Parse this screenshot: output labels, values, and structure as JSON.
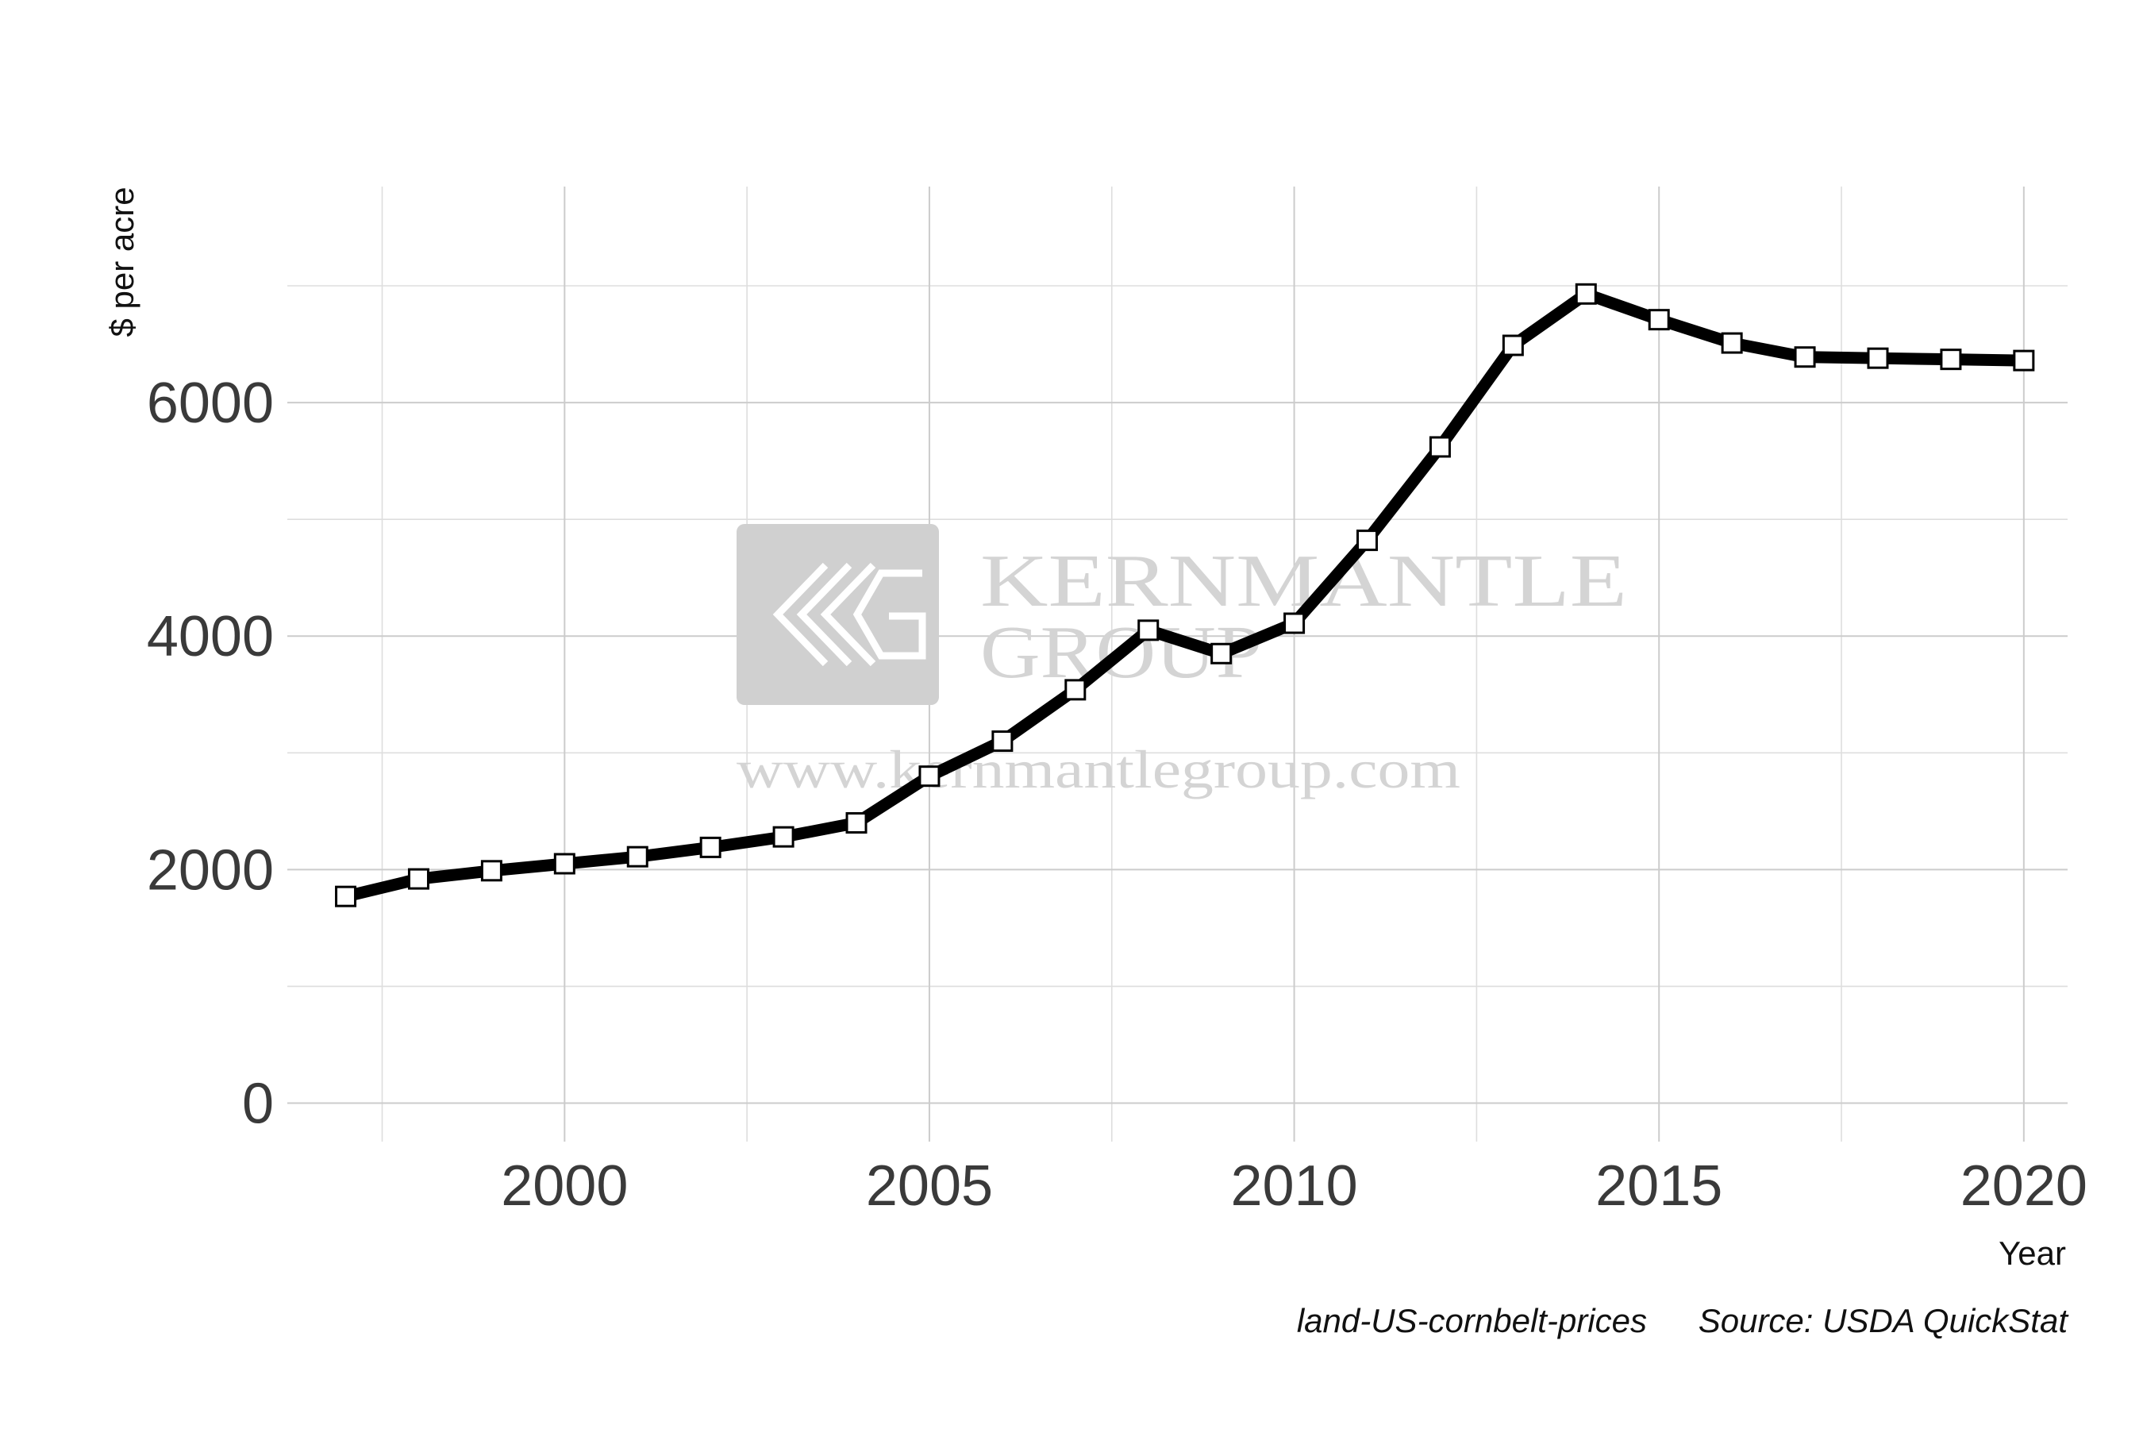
{
  "chart_data": {
    "type": "line",
    "title": "",
    "xlabel": "Year",
    "ylabel": "$ per acre",
    "x": [
      1997,
      1998,
      1999,
      2000,
      2001,
      2002,
      2003,
      2004,
      2005,
      2006,
      2007,
      2008,
      2009,
      2010,
      2011,
      2012,
      2013,
      2014,
      2015,
      2016,
      2017,
      2018,
      2019,
      2020
    ],
    "series": [
      {
        "values": [
          1770,
          1920,
          1990,
          2050,
          2110,
          2190,
          2280,
          2400,
          2800,
          3100,
          3540,
          4050,
          3850,
          4110,
          4820,
          5620,
          6490,
          6930,
          6710,
          6510,
          6390,
          6380,
          6370,
          6360
        ],
        "color": "#000000",
        "marker": "square-open"
      }
    ],
    "xticks": [
      2000,
      2005,
      2010,
      2015,
      2020
    ],
    "xtick_labels": [
      "2000",
      "2005",
      "2010",
      "2015",
      "2020"
    ],
    "yticks": [
      0,
      2000,
      4000,
      6000
    ],
    "ytick_labels": [
      "0",
      "2000",
      "4000",
      "6000"
    ],
    "xlim": [
      1996.2,
      2020.6
    ],
    "ylim": [
      -330,
      7850
    ],
    "grid": true,
    "legend": "none"
  },
  "caption": {
    "left": "land-US-cornbelt-prices",
    "right": "Source: USDA QuickStat"
  },
  "watermark": {
    "line1": "KERNMANTLE",
    "line2": "GROUP",
    "url": "www.kernmantlegroup.com"
  }
}
